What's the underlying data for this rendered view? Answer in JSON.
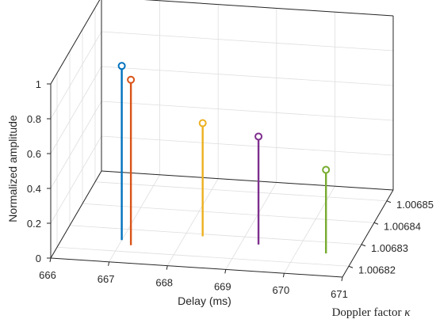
{
  "chart_data": {
    "type": "stem3d",
    "title": "",
    "xlabel": "Delay (ms)",
    "ylabel": "Doppler factor κ",
    "zlabel": "Normalized amplitude",
    "xlim": [
      666,
      671
    ],
    "ylim": [
      1.006815,
      1.006855
    ],
    "zlim": [
      0,
      1
    ],
    "xticks": [
      "666",
      "667",
      "668",
      "669",
      "670",
      "671"
    ],
    "yticks": [
      "1.00682",
      "1.00683",
      "1.00684",
      "1.00685"
    ],
    "zticks": [
      "0",
      "0.2",
      "0.4",
      "0.6",
      "0.8",
      "1"
    ],
    "grid": true,
    "points": [
      {
        "x": 667.0,
        "y": 1.006825,
        "z": 1.0,
        "color": "#0072BD"
      },
      {
        "x": 667.2,
        "y": 1.006823,
        "z": 0.95,
        "color": "#D95319"
      },
      {
        "x": 668.3,
        "y": 1.006829,
        "z": 0.65,
        "color": "#EDB120"
      },
      {
        "x": 669.3,
        "y": 1.006827,
        "z": 0.62,
        "color": "#7E2F8E"
      },
      {
        "x": 670.5,
        "y": 1.006825,
        "z": 0.48,
        "color": "#77AC30"
      }
    ]
  }
}
